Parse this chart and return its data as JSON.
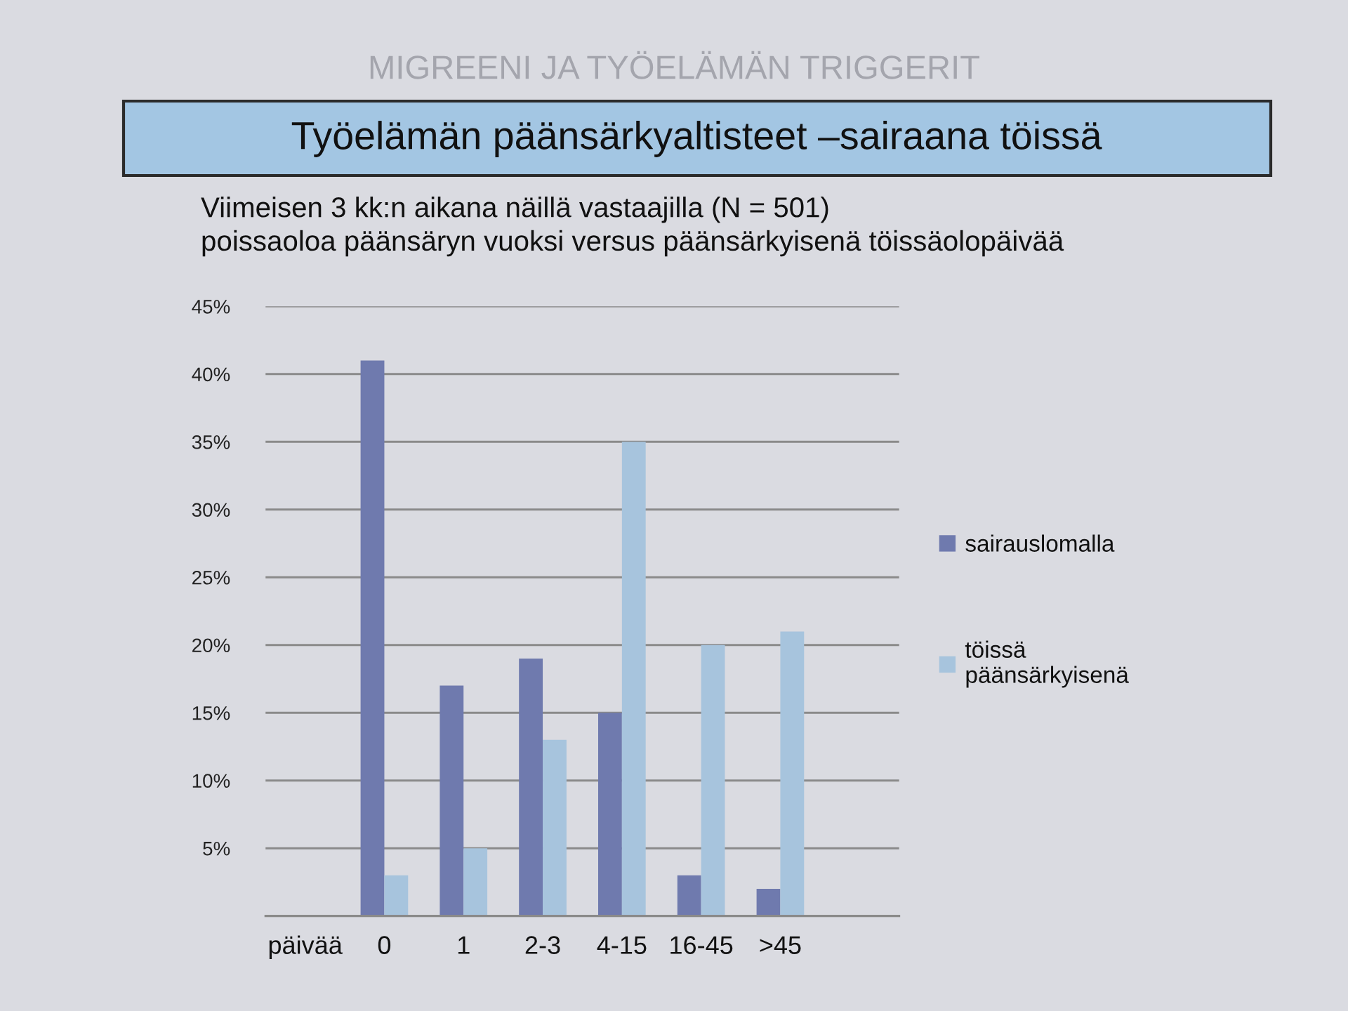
{
  "chart_data": {
    "type": "bar",
    "title": "Työelämän päänsärkyaltisteet –sairaana töissä",
    "subtitle": "Viimeisen 3 kk:n aikana näillä vastaajilla (N = 501)\npoissaoloa päänsäryn vuoksi versus päänsärkyisenä töissäolopäivää",
    "xlabel": "päivää",
    "categories": [
      "0",
      "1",
      "2-3",
      "4-15",
      "16-45",
      ">45"
    ],
    "series": [
      {
        "name": "sairauslomalla",
        "color": "#6f7aae",
        "values": [
          41,
          17,
          19,
          15,
          3,
          2
        ]
      },
      {
        "name": "töissä\npäänsärkyisenä",
        "color": "#a7c4dd",
        "values": [
          3,
          5,
          13,
          35,
          20,
          21
        ]
      }
    ],
    "ylim": [
      0,
      45
    ],
    "yticks": [
      {
        "value": 0,
        "label": null
      },
      {
        "value": 5,
        "label": "5%"
      },
      {
        "value": 10,
        "label": "10%"
      },
      {
        "value": 15,
        "label": "15%"
      },
      {
        "value": 20,
        "label": "20%"
      },
      {
        "value": 25,
        "label": "25%"
      },
      {
        "value": 30,
        "label": "30%"
      },
      {
        "value": 35,
        "label": "35%"
      },
      {
        "value": 40,
        "label": "40%"
      },
      {
        "value": 45,
        "label": "45%"
      }
    ],
    "grid": "y",
    "legend": "right",
    "annotations": [
      "MIGREENI JA TYÖELÄMÄN TRIGGERIT"
    ]
  }
}
